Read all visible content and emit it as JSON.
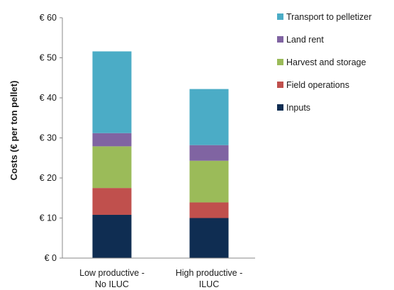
{
  "chart_data": {
    "type": "bar",
    "stacked": true,
    "title": "",
    "xlabel": "",
    "ylabel": "Costs (€ per ton pellet)",
    "ylim": [
      0,
      60
    ],
    "yticks": [
      0,
      10,
      20,
      30,
      40,
      50,
      60
    ],
    "ytick_labels": [
      "€ 0",
      "€ 10",
      "€ 20",
      "€ 30",
      "€ 40",
      "€ 50",
      "€ 60"
    ],
    "categories": [
      [
        "Low productive -",
        "No ILUC"
      ],
      [
        "High productive -",
        "ILUC"
      ]
    ],
    "grid": false,
    "legend_position": "right",
    "series": [
      {
        "name": "Inputs",
        "color": "#0f2d52",
        "values": [
          10.8,
          10.0
        ]
      },
      {
        "name": "Field operations",
        "color": "#c0504d",
        "values": [
          6.7,
          3.9
        ]
      },
      {
        "name": "Harvest and storage",
        "color": "#9bbb59",
        "values": [
          10.4,
          10.4
        ]
      },
      {
        "name": "Land rent",
        "color": "#8064a2",
        "values": [
          3.3,
          3.9
        ]
      },
      {
        "name": "Transport to pelletizer",
        "color": "#4bacc6",
        "values": [
          20.4,
          14.0
        ]
      }
    ]
  }
}
